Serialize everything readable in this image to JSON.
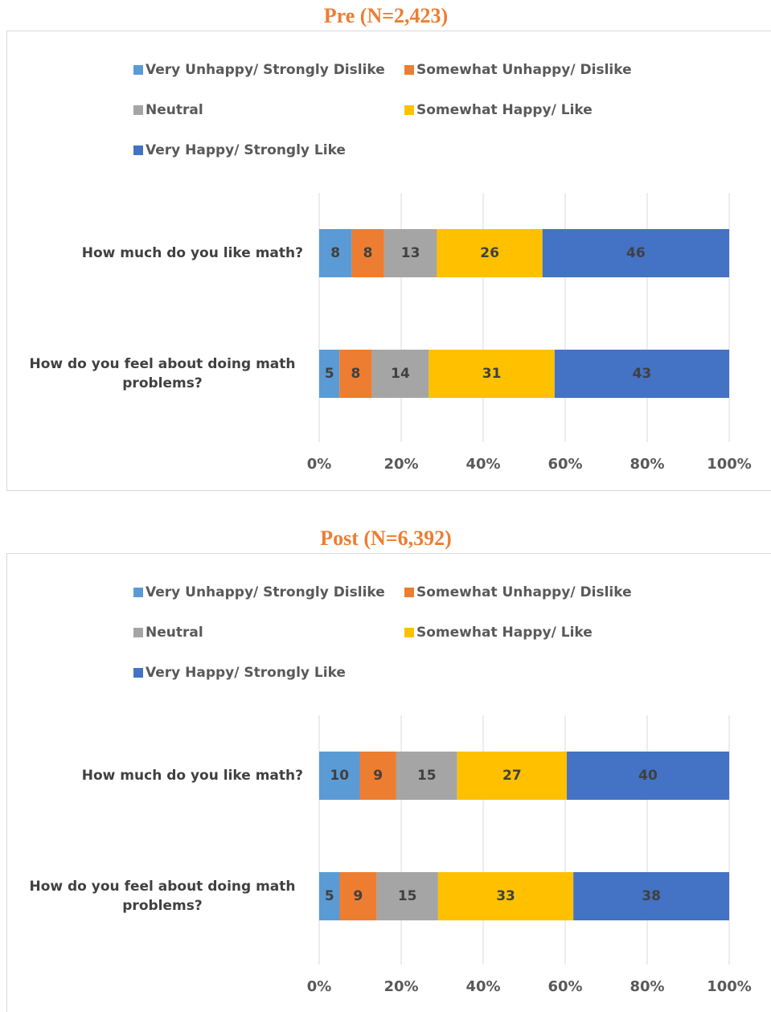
{
  "chart_data": [
    {
      "type": "bar",
      "orientation": "horizontal",
      "stacking": "percent",
      "title": "Pre (N=2,423)",
      "categories": [
        "How much do you like math?",
        "How do you feel about doing math problems?"
      ],
      "series": [
        {
          "name": "Very Unhappy/ Strongly Dislike",
          "color": "#5b9bd5",
          "values": [
            8,
            5
          ]
        },
        {
          "name": "Somewhat Unhappy/ Dislike",
          "color": "#ed7d31",
          "values": [
            8,
            8
          ]
        },
        {
          "name": "Neutral",
          "color": "#a5a5a5",
          "values": [
            13,
            14
          ]
        },
        {
          "name": "Somewhat Happy/ Like",
          "color": "#ffc000",
          "values": [
            26,
            31
          ]
        },
        {
          "name": "Very Happy/ Strongly Like",
          "color": "#4472c4",
          "values": [
            46,
            43
          ]
        }
      ],
      "xlim": [
        0,
        100
      ],
      "xticks": [
        {
          "value": 0,
          "label": "0%"
        },
        {
          "value": 20,
          "label": "20%"
        },
        {
          "value": 40,
          "label": "40%"
        },
        {
          "value": 60,
          "label": "60%"
        },
        {
          "value": 80,
          "label": "80%"
        },
        {
          "value": 100,
          "label": "100%"
        }
      ],
      "grid": true,
      "legend": "top"
    },
    {
      "type": "bar",
      "orientation": "horizontal",
      "stacking": "percent",
      "title": "Post (N=6,392)",
      "categories": [
        "How much do you like math?",
        "How do you feel about doing math problems?"
      ],
      "series": [
        {
          "name": "Very Unhappy/ Strongly Dislike",
          "color": "#5b9bd5",
          "values": [
            10,
            5
          ]
        },
        {
          "name": "Somewhat Unhappy/ Dislike",
          "color": "#ed7d31",
          "values": [
            9,
            9
          ]
        },
        {
          "name": "Neutral",
          "color": "#a5a5a5",
          "values": [
            15,
            15
          ]
        },
        {
          "name": "Somewhat Happy/ Like",
          "color": "#ffc000",
          "values": [
            27,
            33
          ]
        },
        {
          "name": "Very Happy/ Strongly Like",
          "color": "#4472c4",
          "values": [
            40,
            38
          ]
        }
      ],
      "xlim": [
        0,
        100
      ],
      "xticks": [
        {
          "value": 0,
          "label": "0%"
        },
        {
          "value": 20,
          "label": "20%"
        },
        {
          "value": 40,
          "label": "40%"
        },
        {
          "value": 60,
          "label": "60%"
        },
        {
          "value": 80,
          "label": "80%"
        },
        {
          "value": 100,
          "label": "100%"
        }
      ],
      "grid": true,
      "legend": "top"
    }
  ]
}
